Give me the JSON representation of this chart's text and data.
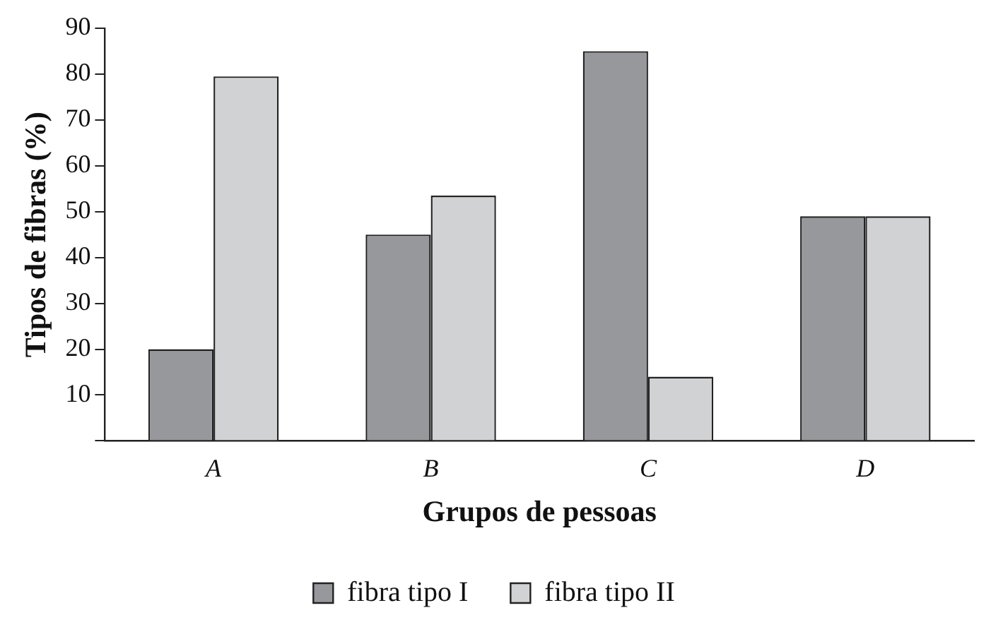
{
  "chart_data": {
    "type": "bar",
    "xlabel": "Grupos de pessoas",
    "ylabel": "Tipos de fibras (%)",
    "categories": [
      "A",
      "B",
      "C",
      "D"
    ],
    "series": [
      {
        "name": "fibra tipo I",
        "color": "#97989c",
        "values": [
          20,
          45,
          85,
          49
        ]
      },
      {
        "name": "fibra tipo II",
        "color": "#d1d2d4",
        "values": [
          79.5,
          53.5,
          14,
          49
        ]
      }
    ],
    "ylim": [
      0,
      90
    ],
    "yticks": [
      {
        "value": 0,
        "label": null
      },
      10,
      20,
      30,
      40,
      50,
      60,
      70,
      80,
      90
    ],
    "grid": false,
    "legend": "bottom"
  }
}
